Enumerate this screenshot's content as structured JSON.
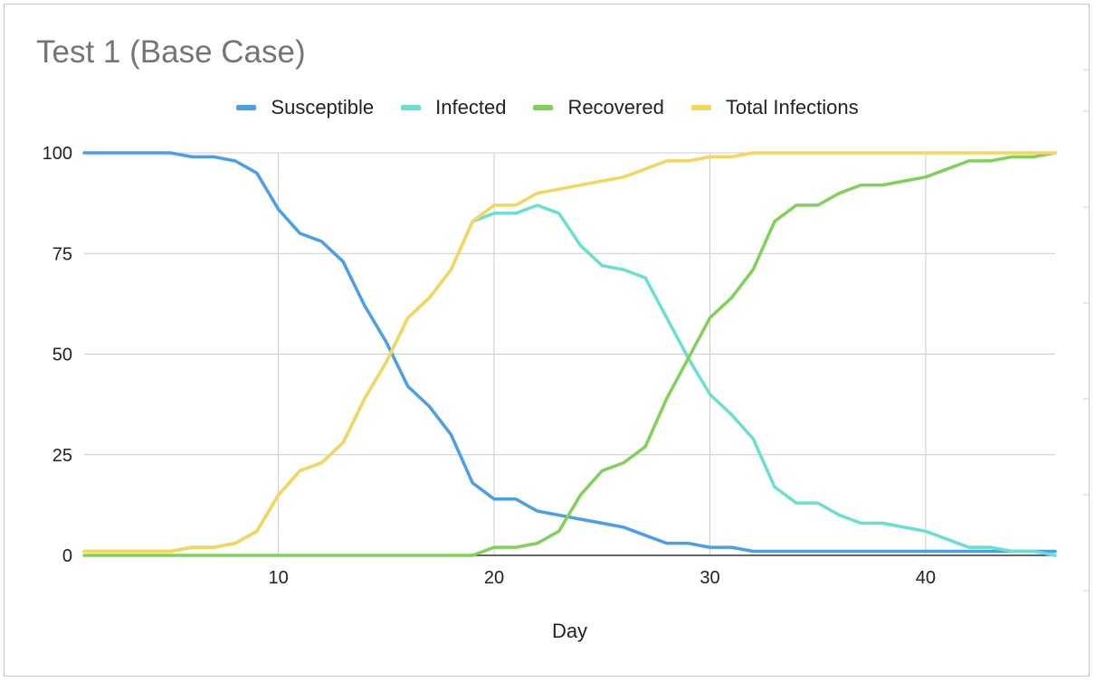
{
  "chart_data": {
    "type": "line",
    "title": "Test 1 (Base Case)",
    "xlabel": "Day",
    "ylabel": "",
    "xlim": [
      1,
      46
    ],
    "ylim": [
      0,
      100
    ],
    "x_ticks": [
      10,
      20,
      30,
      40
    ],
    "y_ticks": [
      0,
      25,
      50,
      75,
      100
    ],
    "grid": true,
    "legend_position": "top",
    "x": [
      1,
      2,
      3,
      4,
      5,
      6,
      7,
      8,
      9,
      10,
      11,
      12,
      13,
      14,
      15,
      16,
      17,
      18,
      19,
      20,
      21,
      22,
      23,
      24,
      25,
      26,
      27,
      28,
      29,
      30,
      31,
      32,
      33,
      34,
      35,
      36,
      37,
      38,
      39,
      40,
      41,
      42,
      43,
      44,
      45,
      46
    ],
    "series": [
      {
        "name": "Susceptible",
        "color": "#4a9eea",
        "values": [
          100,
          100,
          100,
          100,
          100,
          99,
          99,
          98,
          95,
          86,
          80,
          78,
          73,
          62,
          53,
          42,
          37,
          30,
          18,
          14,
          14,
          11,
          10,
          9,
          8,
          7,
          5,
          3,
          3,
          2,
          2,
          1,
          1,
          1,
          1,
          1,
          1,
          1,
          1,
          1,
          1,
          1,
          1,
          1,
          1,
          1
        ]
      },
      {
        "name": "Infected",
        "color": "#69e0cf",
        "values": [
          1,
          1,
          1,
          1,
          1,
          2,
          2,
          3,
          6,
          15,
          21,
          23,
          28,
          39,
          48,
          59,
          64,
          71,
          83,
          85,
          85,
          87,
          85,
          77,
          72,
          71,
          69,
          59,
          49,
          40,
          35,
          29,
          17,
          13,
          13,
          10,
          8,
          8,
          7,
          6,
          4,
          2,
          2,
          1,
          1,
          0
        ]
      },
      {
        "name": "Recovered",
        "color": "#7ed257",
        "values": [
          0,
          0,
          0,
          0,
          0,
          0,
          0,
          0,
          0,
          0,
          0,
          0,
          0,
          0,
          0,
          0,
          0,
          0,
          0,
          2,
          2,
          3,
          6,
          15,
          21,
          23,
          27,
          39,
          49,
          59,
          64,
          71,
          83,
          87,
          87,
          90,
          92,
          92,
          93,
          94,
          96,
          98,
          98,
          99,
          99,
          100
        ]
      },
      {
        "name": "Total Infections",
        "color": "#f5d55b",
        "values": [
          1,
          1,
          1,
          1,
          1,
          2,
          2,
          3,
          6,
          15,
          21,
          23,
          28,
          39,
          48,
          59,
          64,
          71,
          83,
          87,
          87,
          90,
          91,
          92,
          93,
          94,
          96,
          98,
          98,
          99,
          99,
          100,
          100,
          100,
          100,
          100,
          100,
          100,
          100,
          100,
          100,
          100,
          100,
          100,
          100,
          100
        ]
      }
    ]
  }
}
